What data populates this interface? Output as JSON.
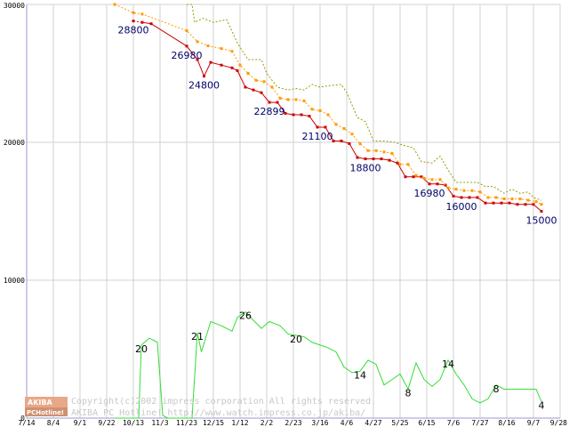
{
  "chart_data": {
    "type": "line",
    "x_tick_labels": [
      "7/14",
      "8/4",
      "9/1",
      "9/22",
      "10/13",
      "11/3",
      "11/23",
      "12/15",
      "1/12",
      "2/2",
      "2/23",
      "3/16",
      "4/6",
      "4/27",
      "5/25",
      "6/15",
      "7/6",
      "7/27",
      "8/16",
      "9/7",
      "9/28"
    ],
    "y_tick_labels": [
      "0",
      "10000",
      "20000",
      "30000"
    ],
    "ylim": [
      0,
      30000
    ],
    "grid": true,
    "colors": {
      "low": "#cc0000",
      "mid": "#ff9900",
      "high": "#999900",
      "volume": "#33dd33",
      "grid": "#d0d0d0",
      "axis": "#9999cc"
    },
    "series": [
      {
        "id": "low",
        "values": [
          [
            4.0,
            28800
          ],
          [
            4.33,
            28700
          ],
          [
            4.67,
            28600
          ],
          [
            6.0,
            26980
          ],
          [
            6.4,
            26000
          ],
          [
            6.65,
            24800
          ],
          [
            6.9,
            25800
          ],
          [
            7.3,
            25600
          ],
          [
            7.7,
            25400
          ],
          [
            7.9,
            25200
          ],
          [
            8.2,
            24000
          ],
          [
            8.5,
            23800
          ],
          [
            8.8,
            23600
          ],
          [
            9.1,
            22899
          ],
          [
            9.4,
            22899
          ],
          [
            9.7,
            22100
          ],
          [
            10.0,
            22000
          ],
          [
            10.3,
            22000
          ],
          [
            10.6,
            21900
          ],
          [
            10.9,
            21100
          ],
          [
            11.2,
            21100
          ],
          [
            11.5,
            20100
          ],
          [
            11.8,
            20100
          ],
          [
            12.1,
            19900
          ],
          [
            12.4,
            18900
          ],
          [
            12.7,
            18800
          ],
          [
            13.0,
            18800
          ],
          [
            13.3,
            18800
          ],
          [
            13.6,
            18700
          ],
          [
            13.9,
            18500
          ],
          [
            14.2,
            17500
          ],
          [
            14.5,
            17500
          ],
          [
            14.8,
            17500
          ],
          [
            15.1,
            16980
          ],
          [
            15.4,
            16980
          ],
          [
            15.7,
            16900
          ],
          [
            16.0,
            16100
          ],
          [
            16.3,
            16000
          ],
          [
            16.6,
            16000
          ],
          [
            16.9,
            16000
          ],
          [
            17.2,
            15600
          ],
          [
            17.5,
            15600
          ],
          [
            17.8,
            15600
          ],
          [
            18.1,
            15600
          ],
          [
            18.4,
            15500
          ],
          [
            18.7,
            15500
          ],
          [
            19.0,
            15500
          ],
          [
            19.3,
            15000
          ]
        ],
        "dashed_until": 1
      },
      {
        "id": "mid",
        "values": [
          [
            3.3,
            30000
          ],
          [
            4.0,
            29400
          ],
          [
            4.33,
            29300
          ],
          [
            6.0,
            28100
          ],
          [
            6.4,
            27300
          ],
          [
            6.8,
            27000
          ],
          [
            7.3,
            26800
          ],
          [
            7.7,
            26600
          ],
          [
            8.0,
            25600
          ],
          [
            8.3,
            25000
          ],
          [
            8.6,
            24500
          ],
          [
            8.9,
            24400
          ],
          [
            9.2,
            24000
          ],
          [
            9.5,
            23200
          ],
          [
            9.8,
            23100
          ],
          [
            10.1,
            23100
          ],
          [
            10.4,
            23000
          ],
          [
            10.7,
            22400
          ],
          [
            11.0,
            22300
          ],
          [
            11.3,
            22000
          ],
          [
            11.6,
            21300
          ],
          [
            11.9,
            21000
          ],
          [
            12.2,
            20600
          ],
          [
            12.5,
            19900
          ],
          [
            12.8,
            19400
          ],
          [
            13.1,
            19400
          ],
          [
            13.4,
            19300
          ],
          [
            13.7,
            19200
          ],
          [
            14.0,
            18400
          ],
          [
            14.3,
            18400
          ],
          [
            14.6,
            17600
          ],
          [
            14.9,
            17400
          ],
          [
            15.2,
            17300
          ],
          [
            15.5,
            17300
          ],
          [
            15.8,
            16700
          ],
          [
            16.1,
            16600
          ],
          [
            16.4,
            16500
          ],
          [
            16.7,
            16500
          ],
          [
            17.0,
            16400
          ],
          [
            17.3,
            16000
          ],
          [
            17.6,
            16000
          ],
          [
            17.9,
            15900
          ],
          [
            18.2,
            15900
          ],
          [
            18.5,
            15900
          ],
          [
            18.8,
            15800
          ],
          [
            19.1,
            15700
          ],
          [
            19.3,
            15500
          ]
        ],
        "dashed_until": 999
      },
      {
        "id": "high",
        "values": [
          [
            6.0,
            30000
          ],
          [
            6.2,
            30000
          ],
          [
            6.3,
            28700
          ],
          [
            6.6,
            29000
          ],
          [
            7.0,
            28700
          ],
          [
            7.5,
            28900
          ],
          [
            7.9,
            27200
          ],
          [
            8.3,
            26000
          ],
          [
            8.8,
            26000
          ],
          [
            9.0,
            25000
          ],
          [
            9.4,
            24000
          ],
          [
            9.8,
            23800
          ],
          [
            10.1,
            23900
          ],
          [
            10.4,
            23800
          ],
          [
            10.7,
            24200
          ],
          [
            11.0,
            24000
          ],
          [
            11.3,
            24100
          ],
          [
            11.8,
            24200
          ],
          [
            12.0,
            23600
          ],
          [
            12.4,
            21800
          ],
          [
            12.7,
            21500
          ],
          [
            13.0,
            20100
          ],
          [
            13.4,
            20100
          ],
          [
            13.8,
            20000
          ],
          [
            14.1,
            19800
          ],
          [
            14.5,
            19600
          ],
          [
            14.8,
            18600
          ],
          [
            15.2,
            18500
          ],
          [
            15.5,
            19000
          ],
          [
            15.8,
            18000
          ],
          [
            16.1,
            17100
          ],
          [
            16.5,
            17100
          ],
          [
            16.9,
            17100
          ],
          [
            17.2,
            16800
          ],
          [
            17.5,
            16800
          ],
          [
            17.9,
            16300
          ],
          [
            18.2,
            16600
          ],
          [
            18.5,
            16300
          ],
          [
            18.8,
            16400
          ],
          [
            19.0,
            16000
          ],
          [
            19.3,
            15800
          ]
        ],
        "dashed_until": 999
      },
      {
        "id": "volume",
        "values": [
          [
            3.3,
            0
          ],
          [
            3.8,
            0
          ],
          [
            4.2,
            0
          ],
          [
            4.3,
            5300
          ],
          [
            4.6,
            5800
          ],
          [
            4.9,
            5500
          ],
          [
            5.1,
            200
          ],
          [
            5.3,
            0
          ],
          [
            5.8,
            0
          ],
          [
            6.0,
            0
          ],
          [
            6.2,
            0
          ],
          [
            6.4,
            6200
          ],
          [
            6.55,
            4800
          ],
          [
            6.9,
            7000
          ],
          [
            7.3,
            6700
          ],
          [
            7.7,
            6300
          ],
          [
            7.9,
            7300
          ],
          [
            8.2,
            7700
          ],
          [
            8.4,
            7300
          ],
          [
            8.8,
            6500
          ],
          [
            9.1,
            7000
          ],
          [
            9.5,
            6700
          ],
          [
            9.8,
            6100
          ],
          [
            10.1,
            6000
          ],
          [
            10.4,
            5900
          ],
          [
            10.7,
            5500
          ],
          [
            11.0,
            5300
          ],
          [
            11.3,
            5100
          ],
          [
            11.6,
            4800
          ],
          [
            11.9,
            3700
          ],
          [
            12.2,
            3300
          ],
          [
            12.5,
            3400
          ],
          [
            12.8,
            4200
          ],
          [
            13.1,
            3900
          ],
          [
            13.4,
            2400
          ],
          [
            13.7,
            2800
          ],
          [
            14.0,
            3200
          ],
          [
            14.3,
            2100
          ],
          [
            14.6,
            4000
          ],
          [
            14.9,
            2800
          ],
          [
            15.2,
            2300
          ],
          [
            15.5,
            2800
          ],
          [
            15.8,
            4200
          ],
          [
            16.1,
            3200
          ],
          [
            16.4,
            2400
          ],
          [
            16.7,
            1400
          ],
          [
            17.0,
            1100
          ],
          [
            17.3,
            1400
          ],
          [
            17.6,
            2400
          ],
          [
            17.9,
            2100
          ],
          [
            18.2,
            2100
          ],
          [
            18.5,
            2100
          ],
          [
            18.8,
            2100
          ],
          [
            19.1,
            2100
          ],
          [
            19.3,
            1200
          ]
        ]
      }
    ],
    "price_labels": [
      {
        "text": "28800",
        "x": 4.0,
        "y": 28800
      },
      {
        "text": "26980",
        "x": 6.0,
        "y": 26980
      },
      {
        "text": "24800",
        "x": 6.65,
        "y": 24800
      },
      {
        "text": "22899",
        "x": 9.1,
        "y": 22899
      },
      {
        "text": "21100",
        "x": 10.9,
        "y": 21100
      },
      {
        "text": "18800",
        "x": 12.7,
        "y": 18800
      },
      {
        "text": "16980",
        "x": 15.1,
        "y": 16980
      },
      {
        "text": "16000",
        "x": 16.3,
        "y": 16000
      },
      {
        "text": "15000",
        "x": 19.3,
        "y": 15000
      }
    ],
    "volume_labels": [
      {
        "text": "20",
        "x": 4.3,
        "y": 5300
      },
      {
        "text": "21",
        "x": 6.4,
        "y": 6200
      },
      {
        "text": "26",
        "x": 8.2,
        "y": 7700
      },
      {
        "text": "20",
        "x": 10.1,
        "y": 6000
      },
      {
        "text": "14",
        "x": 12.5,
        "y": 3400
      },
      {
        "text": "8",
        "x": 14.3,
        "y": 2100
      },
      {
        "text": "14",
        "x": 15.8,
        "y": 4200
      },
      {
        "text": "8",
        "x": 17.6,
        "y": 2400
      },
      {
        "text": "4",
        "x": 19.3,
        "y": 1200
      }
    ]
  },
  "watermark": {
    "logo_top": "AKIBA",
    "logo_bottom": "PCHotline!",
    "line1": "Copyright(c)2002 impress corporation All rights reserved.",
    "line2": "AKIBA PC Hotline! http://www.watch.impress.co.jp/akiba/"
  }
}
